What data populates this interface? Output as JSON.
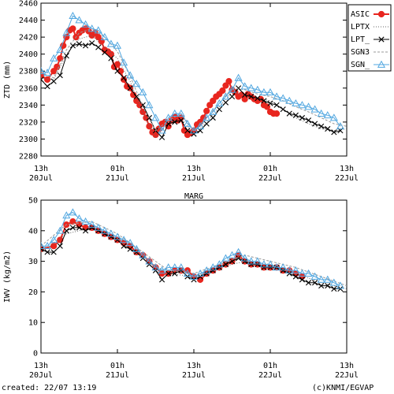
{
  "chart_data": [
    {
      "type": "line",
      "title": "",
      "xlabel": "",
      "ylabel": "ZTD (mm)",
      "ylim": [
        2280,
        2460
      ],
      "yticks": [
        2280,
        2300,
        2320,
        2340,
        2360,
        2380,
        2400,
        2420,
        2440,
        2460
      ],
      "xlim": [
        0,
        48
      ],
      "xtick_labels": [
        {
          "x": 0,
          "top": "13h",
          "bottom": "20Jul"
        },
        {
          "x": 12,
          "top": "01h",
          "bottom": "21Jul"
        },
        {
          "x": 24,
          "top": "13h",
          "bottom": "21Jul"
        },
        {
          "x": 36,
          "top": "01h",
          "bottom": "22Jul"
        },
        {
          "x": 48,
          "top": "13h",
          "bottom": "22Jul"
        }
      ],
      "x_unit": "hours since 20Jul 13h",
      "legend_position": "top-right",
      "series": [
        {
          "name": "ASIC",
          "color": "#e8261f",
          "style": "line-dot",
          "x": [
            0,
            1,
            2,
            2.5,
            3,
            3.5,
            4,
            4.5,
            5,
            5.5,
            6,
            6.5,
            7,
            7.5,
            8,
            8.5,
            9,
            9.5,
            10,
            10.5,
            11,
            11.5,
            12,
            12.5,
            13,
            13.5,
            14,
            14.5,
            15,
            15.5,
            16,
            16.5,
            17,
            17.5,
            18,
            18.5,
            19,
            19.5,
            20,
            20.5,
            21,
            21.5,
            22,
            22.5,
            23,
            23.5,
            24,
            24.5,
            25,
            25.5,
            26,
            26.5,
            27,
            27.5,
            28,
            28.5,
            29,
            29.5,
            30,
            30.5,
            31,
            31.5,
            32,
            32.5,
            33,
            33.5,
            34,
            34.5,
            35,
            35.5,
            36,
            36.5,
            37,
            37.5,
            38,
            38.5,
            39,
            39.5,
            40,
            40.5,
            41,
            41.5,
            42
          ],
          "y": [
            2375,
            2370,
            2380,
            2385,
            2395,
            2410,
            2420,
            2428,
            2430,
            2420,
            2425,
            2428,
            2430,
            2427,
            2422,
            2425,
            2420,
            2415,
            2405,
            2403,
            2400,
            2385,
            2388,
            2380,
            2370,
            2362,
            2360,
            2352,
            2345,
            2340,
            2332,
            2325,
            2315,
            2308,
            2305,
            2312,
            2318,
            2320,
            2315,
            2322,
            2326,
            2322,
            2325,
            2310,
            2305,
            2307,
            2310,
            2317,
            2320,
            2325,
            2333,
            2340,
            2345,
            2350,
            2353,
            2357,
            2363,
            2368,
            2358,
            2355,
            2350,
            2352,
            2347,
            2353,
            2350,
            2347,
            2345,
            2347,
            2340,
            2338,
            2332,
            2330,
            2330,
            null,
            null,
            null,
            null,
            null,
            null,
            null,
            null,
            null,
            null
          ]
        },
        {
          "name": "LPTX",
          "color": "#666666",
          "style": "dotted",
          "x": [
            0,
            2,
            4,
            6,
            8,
            10,
            12,
            14,
            16,
            18,
            20,
            22,
            24,
            26,
            28,
            30,
            32,
            34,
            36,
            38,
            40,
            42,
            44,
            46,
            48
          ],
          "y": [
            2372,
            2370,
            2400,
            2418,
            2422,
            2408,
            2395,
            2368,
            2330,
            2302,
            2318,
            2325,
            2305,
            2320,
            2338,
            2355,
            2352,
            2348,
            2345,
            2335,
            2325,
            2318,
            2312,
            2310,
            2312
          ]
        },
        {
          "name": "LPT_",
          "color": "#000000",
          "style": "line-x",
          "x": [
            0,
            1,
            2,
            3,
            4,
            5,
            6,
            7,
            8,
            9,
            10,
            11,
            12,
            13,
            14,
            15,
            16,
            17,
            18,
            19,
            20,
            21,
            22,
            23,
            24,
            25,
            26,
            27,
            28,
            29,
            30,
            31,
            32,
            33,
            34,
            35,
            36,
            37,
            38,
            39,
            40,
            41,
            42,
            43,
            44,
            45,
            46,
            47
          ],
          "y": [
            2370,
            2362,
            2368,
            2375,
            2398,
            2410,
            2412,
            2410,
            2413,
            2408,
            2402,
            2395,
            2380,
            2372,
            2360,
            2350,
            2340,
            2325,
            2310,
            2302,
            2318,
            2320,
            2322,
            2310,
            2306,
            2310,
            2318,
            2325,
            2335,
            2343,
            2350,
            2360,
            2352,
            2350,
            2348,
            2345,
            2342,
            2340,
            2335,
            2330,
            2328,
            2325,
            2322,
            2318,
            2315,
            2312,
            2308,
            2310
          ]
        },
        {
          "name": "SGN3",
          "color": "#999999",
          "style": "dashed",
          "x": [
            0,
            2,
            4,
            6,
            8,
            10,
            12,
            14,
            16,
            18,
            20,
            22,
            24,
            26,
            28,
            30,
            32,
            34,
            36,
            38,
            40,
            42,
            44,
            46,
            48
          ],
          "y": [
            2378,
            2372,
            2405,
            2425,
            2430,
            2420,
            2403,
            2374,
            2338,
            2310,
            2322,
            2330,
            2310,
            2325,
            2342,
            2360,
            2358,
            2353,
            2350,
            2345,
            2338,
            2332,
            2325,
            2318,
            2315
          ]
        },
        {
          "name": "SGN_",
          "color": "#52a7e0",
          "style": "line-triangle",
          "x": [
            0,
            1,
            2,
            3,
            4,
            5,
            6,
            7,
            8,
            9,
            10,
            11,
            12,
            13,
            14,
            15,
            16,
            17,
            18,
            19,
            20,
            21,
            22,
            23,
            24,
            25,
            26,
            27,
            28,
            29,
            30,
            31,
            32,
            33,
            34,
            35,
            36,
            37,
            38,
            39,
            40,
            41,
            42,
            43,
            44,
            45,
            46,
            47
          ],
          "y": [
            2380,
            2378,
            2395,
            2405,
            2425,
            2445,
            2440,
            2435,
            2430,
            2428,
            2420,
            2412,
            2410,
            2390,
            2375,
            2365,
            2355,
            2340,
            2325,
            2310,
            2325,
            2330,
            2330,
            2318,
            2310,
            2315,
            2325,
            2332,
            2342,
            2350,
            2358,
            2372,
            2362,
            2360,
            2358,
            2355,
            2355,
            2350,
            2348,
            2345,
            2342,
            2340,
            2338,
            2335,
            2330,
            2328,
            2325,
            2315
          ]
        }
      ]
    },
    {
      "type": "line",
      "title": "MARG",
      "xlabel": "",
      "ylabel": "IWV (kg/m2)",
      "ylim": [
        0,
        50
      ],
      "yticks": [
        0,
        10,
        20,
        30,
        40,
        50
      ],
      "xlim": [
        0,
        48
      ],
      "xtick_labels": [
        {
          "x": 0,
          "top": "13h",
          "bottom": "20Jul"
        },
        {
          "x": 12,
          "top": "01h",
          "bottom": "21Jul"
        },
        {
          "x": 24,
          "top": "13h",
          "bottom": "21Jul"
        },
        {
          "x": 36,
          "top": "01h",
          "bottom": "22Jul"
        },
        {
          "x": 48,
          "top": "13h",
          "bottom": "22Jul"
        }
      ],
      "x_unit": "hours since 20Jul 13h",
      "series": [
        {
          "name": "ASIC",
          "color": "#e8261f",
          "style": "line-dot",
          "x": [
            0,
            2,
            3,
            4,
            5,
            6,
            7,
            8,
            9,
            10,
            11,
            12,
            13,
            14,
            15,
            16,
            17,
            18,
            19,
            20,
            21,
            22,
            23,
            24,
            25,
            26,
            27,
            28,
            29,
            30,
            31,
            32,
            33,
            34,
            35,
            36,
            37,
            38,
            39,
            40,
            41
          ],
          "y": [
            34,
            35,
            37,
            42,
            43,
            42,
            41,
            41,
            40,
            39,
            38,
            37,
            36,
            35,
            33,
            32,
            30,
            28,
            26,
            26,
            27,
            27,
            27,
            25,
            24,
            26,
            27,
            28,
            29,
            30,
            32,
            30,
            29,
            29,
            28,
            28,
            28,
            27,
            27,
            26,
            25
          ]
        },
        {
          "name": "LPTX",
          "color": "#666666",
          "style": "dotted",
          "x": [
            0,
            4,
            8,
            12,
            16,
            20,
            24,
            28,
            32,
            36,
            40,
            44,
            48
          ],
          "y": [
            33,
            39,
            41,
            37,
            31,
            26,
            25,
            28,
            30,
            29,
            26,
            23,
            21
          ]
        },
        {
          "name": "LPT_",
          "color": "#000000",
          "style": "line-x",
          "x": [
            0,
            1,
            2,
            3,
            4,
            5,
            6,
            7,
            8,
            9,
            10,
            11,
            12,
            13,
            14,
            15,
            16,
            17,
            18,
            19,
            20,
            21,
            22,
            23,
            24,
            25,
            26,
            27,
            28,
            29,
            30,
            31,
            32,
            33,
            34,
            35,
            36,
            37,
            38,
            39,
            40,
            41,
            42,
            43,
            44,
            45,
            46,
            47
          ],
          "y": [
            34,
            33,
            33,
            35,
            40,
            41,
            41,
            40,
            41,
            40,
            39,
            38,
            37,
            35,
            34,
            33,
            31,
            29,
            27,
            24,
            26,
            26,
            27,
            25,
            24,
            25,
            26,
            27,
            28,
            29,
            30,
            31,
            30,
            29,
            29,
            28,
            28,
            28,
            27,
            26,
            25,
            24,
            23,
            23,
            22,
            22,
            21,
            21
          ]
        },
        {
          "name": "SGN3",
          "color": "#999999",
          "style": "dashed",
          "x": [
            0,
            4,
            8,
            12,
            16,
            20,
            24,
            28,
            32,
            36,
            40,
            44,
            48
          ],
          "y": [
            35,
            42,
            43,
            39,
            33,
            27,
            26,
            29,
            32,
            30,
            28,
            25,
            22
          ]
        },
        {
          "name": "SGN_",
          "color": "#52a7e0",
          "style": "line-triangle",
          "x": [
            0,
            1,
            2,
            3,
            4,
            5,
            6,
            7,
            8,
            9,
            10,
            11,
            12,
            13,
            14,
            15,
            16,
            17,
            18,
            19,
            20,
            21,
            22,
            23,
            24,
            25,
            26,
            27,
            28,
            29,
            30,
            31,
            32,
            33,
            34,
            35,
            36,
            37,
            38,
            39,
            40,
            41,
            42,
            43,
            44,
            45,
            46,
            47
          ],
          "y": [
            35,
            35,
            37,
            40,
            45,
            46,
            44,
            43,
            42,
            41,
            40,
            39,
            38,
            37,
            36,
            34,
            32,
            30,
            28,
            27,
            28,
            28,
            28,
            26,
            25,
            26,
            27,
            28,
            29,
            31,
            32,
            33,
            31,
            30,
            30,
            29,
            29,
            28,
            28,
            27,
            27,
            26,
            26,
            25,
            24,
            24,
            23,
            22
          ]
        }
      ]
    }
  ],
  "footer": {
    "created": "created: 22/07 13:19",
    "credit": "(c)KNMI/EGVAP"
  }
}
